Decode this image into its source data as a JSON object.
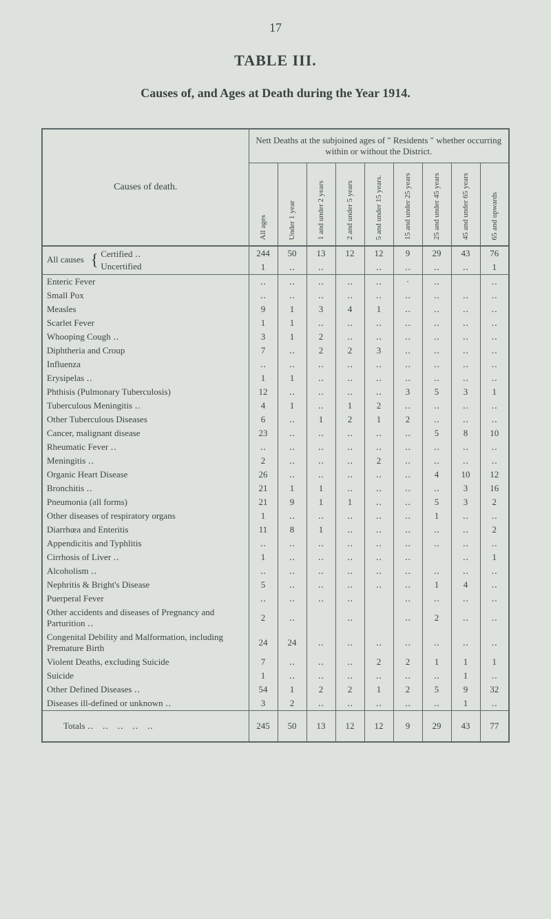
{
  "page_number": "17",
  "table_title": "TABLE III.",
  "subtitle": "Causes of, and Ages at Death during the Year 1914.",
  "header_caption": "Nett Deaths at the subjoined ages of \" Residents \" whether occurring within or without the District.",
  "causes_header": "Causes of death.",
  "columns": [
    "All ages",
    "Under 1 year",
    "1 and under 2 years",
    "2 and under 5 years",
    "5 and under 15 years.",
    "15 and under 25 years",
    "25 and under 45 years",
    "45 and under 65 years",
    "65 and upwards"
  ],
  "all_causes_label": "All causes",
  "all_causes_sub1": "Certified ‥",
  "all_causes_sub2": "Uncertified",
  "all_causes_row1": [
    "244",
    "50",
    "13",
    "12",
    "12",
    "9",
    "29",
    "43",
    "76"
  ],
  "all_causes_row2": [
    "1",
    "‥",
    "‥",
    "",
    "‥",
    "‥",
    "‥",
    "‥",
    "1"
  ],
  "rows": [
    {
      "cause": "Enteric Fever",
      "vals": [
        "‥",
        "‥",
        "‥",
        "‥",
        "‥",
        "·",
        "‥",
        "",
        "‥"
      ]
    },
    {
      "cause": "Small Pox",
      "vals": [
        "‥",
        "‥",
        "‥",
        "‥",
        "‥",
        "‥",
        "‥",
        "‥",
        "‥"
      ]
    },
    {
      "cause": "Measles",
      "vals": [
        "9",
        "1",
        "3",
        "4",
        "1",
        "‥",
        "‥",
        "‥",
        "‥"
      ]
    },
    {
      "cause": "Scarlet Fever",
      "vals": [
        "1",
        "1",
        "‥",
        "‥",
        "‥",
        "‥",
        "‥",
        "‥",
        "‥"
      ]
    },
    {
      "cause": "Whooping Cough ‥",
      "vals": [
        "3",
        "1",
        "2",
        "‥",
        "‥",
        "‥",
        "‥",
        "‥",
        "‥"
      ]
    },
    {
      "cause": "Diphtheria and Croup",
      "vals": [
        "7",
        "‥",
        "2",
        "2",
        "3",
        "‥",
        "‥",
        "‥",
        "‥"
      ]
    },
    {
      "cause": "Influenza",
      "vals": [
        "‥",
        "‥",
        "‥",
        "‥",
        "‥",
        "‥",
        "‥",
        "‥",
        "‥"
      ]
    },
    {
      "cause": "Erysipelas ‥",
      "vals": [
        "1",
        "1",
        "‥",
        "‥",
        "‥",
        "‥",
        "‥",
        "‥",
        "‥"
      ]
    },
    {
      "cause": "Phthisis (Pulmonary Tuberculosis)",
      "vals": [
        "12",
        "‥",
        "‥",
        "‥",
        "‥",
        "3",
        "5",
        "3",
        "1"
      ]
    },
    {
      "cause": "Tuberculous Meningitis ‥",
      "vals": [
        "4",
        "1",
        "‥",
        "1",
        "2",
        "‥",
        "‥",
        "‥",
        "‥"
      ]
    },
    {
      "cause": "Other Tuberculous Diseases",
      "vals": [
        "6",
        "‥",
        "1",
        "2",
        "1",
        "2",
        "‥",
        "‥",
        "‥"
      ]
    },
    {
      "cause": "Cancer, malignant disease",
      "vals": [
        "23",
        "‥",
        "‥",
        "‥",
        "‥",
        "‥",
        "5",
        "8",
        "10"
      ]
    },
    {
      "cause": "Rheumatic Fever ‥",
      "vals": [
        "‥",
        "‥",
        "‥",
        "‥",
        "‥",
        "‥",
        "‥",
        "‥",
        "‥"
      ]
    },
    {
      "cause": "Meningitis ‥",
      "vals": [
        "2",
        "‥",
        "‥",
        "‥",
        "2",
        "‥",
        "‥",
        "‥",
        "‥"
      ]
    },
    {
      "cause": "Organic Heart Disease",
      "vals": [
        "26",
        "‥",
        "‥",
        "‥",
        "‥",
        "‥",
        "4",
        "10",
        "12"
      ]
    },
    {
      "cause": "Bronchitis ‥",
      "vals": [
        "21",
        "1",
        "1",
        "‥",
        "‥",
        "‥",
        "‥",
        "3",
        "16"
      ]
    },
    {
      "cause": "Pneumonia (all forms)",
      "vals": [
        "21",
        "9",
        "1",
        "1",
        "‥",
        "‥",
        "5",
        "3",
        "2"
      ]
    },
    {
      "cause": "Other diseases of respiratory organs",
      "vals": [
        "1",
        "‥",
        "‥",
        "‥",
        "‥",
        "‥",
        "1",
        "‥",
        "‥"
      ]
    },
    {
      "cause": "Diarrhœa and Enteritis",
      "vals": [
        "11",
        "8",
        "1",
        "‥",
        "‥",
        "‥",
        "‥",
        "‥",
        "2"
      ]
    },
    {
      "cause": "Appendicitis and Typhlitis",
      "vals": [
        "‥",
        "‥",
        "‥",
        "‥",
        "‥",
        "‥",
        "‥",
        "‥",
        "‥"
      ]
    },
    {
      "cause": "Cirrhosis of Liver ‥",
      "vals": [
        "1",
        "‥",
        "‥",
        "‥",
        "‥",
        "‥",
        "",
        "‥",
        "1"
      ]
    },
    {
      "cause": "Alcoholism ‥",
      "vals": [
        "‥",
        "‥",
        "‥",
        "‥",
        "‥",
        "‥",
        "‥",
        "‥",
        "‥"
      ]
    },
    {
      "cause": "Nephritis & Bright's Disease",
      "vals": [
        "5",
        "‥",
        "‥",
        "‥",
        "‥",
        "‥",
        "1",
        "4",
        "‥"
      ]
    },
    {
      "cause": "Puerperal Fever",
      "vals": [
        "‥",
        "‥",
        "‥",
        "‥",
        "",
        "‥",
        "‥",
        "‥",
        "‥"
      ]
    },
    {
      "cause": "Other accidents and diseases of Pregnancy and Parturition ‥",
      "vals": [
        "2",
        "‥",
        "",
        "‥",
        "",
        "‥",
        "2",
        "‥",
        "‥"
      ],
      "multiline": true
    },
    {
      "cause": "Congenital Debility and Malformation, including Premature Birth",
      "vals": [
        "24",
        "24",
        "‥",
        "‥",
        "‥",
        "‥",
        "‥",
        "‥",
        "‥"
      ],
      "multiline": true
    },
    {
      "cause": "Violent Deaths, excluding Suicide",
      "vals": [
        "7",
        "‥",
        "‥",
        "‥",
        "2",
        "2",
        "1",
        "1",
        "1"
      ]
    },
    {
      "cause": "Suicide",
      "vals": [
        "1",
        "‥",
        "‥",
        "‥",
        "‥",
        "‥",
        "‥",
        "1",
        "‥"
      ]
    },
    {
      "cause": "Other Defined Diseases ‥",
      "vals": [
        "54",
        "1",
        "2",
        "2",
        "1",
        "2",
        "5",
        "9",
        "32"
      ]
    },
    {
      "cause": "Diseases ill-defined or unknown ‥",
      "vals": [
        "3",
        "2",
        "‥",
        "‥",
        "‥",
        "‥",
        "‥",
        "1",
        "‥"
      ]
    }
  ],
  "totals_label": "Totals ‥",
  "totals": [
    "245",
    "50",
    "13",
    "12",
    "12",
    "9",
    "29",
    "43",
    "77"
  ],
  "colors": {
    "background": "#dde2dc",
    "text": "#3a4242",
    "border": "#5a6565"
  },
  "fonts": {
    "body": "Georgia, 'Times New Roman', serif",
    "title_size": 22,
    "subtitle_size": 18,
    "table_size": 13,
    "header_size": 11
  }
}
